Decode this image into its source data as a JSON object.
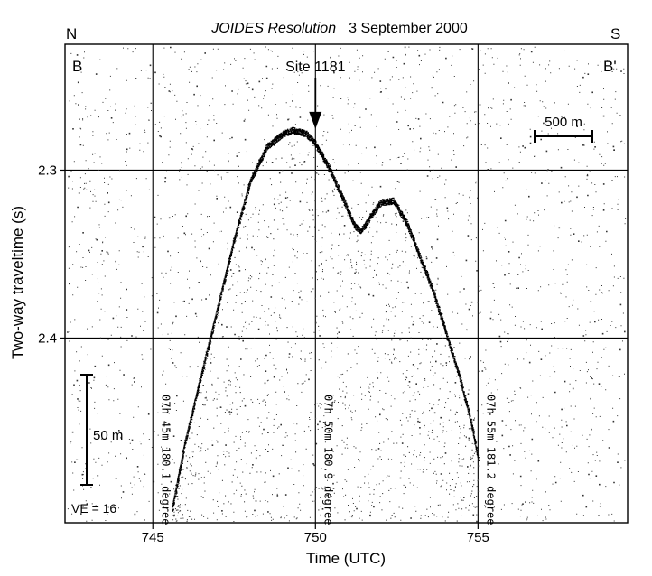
{
  "chart_data": {
    "type": "scatter",
    "title_italic": "JOIDES Resolution",
    "title_date": "3 September 2000",
    "xlabel": "Time (UTC)",
    "ylabel": "Two-way traveltime (s)",
    "xlim": [
      742.3,
      759.6
    ],
    "ylim": [
      2.51,
      2.225
    ],
    "xticks": [
      745,
      750,
      755
    ],
    "yticks": [
      2.3,
      2.4
    ],
    "xtick_labels": [
      "745",
      "750",
      "755"
    ],
    "ytick_labels": [
      "2.3",
      "2.4"
    ],
    "grid": true,
    "corner_labels": {
      "top_left": "N",
      "top_right": "S",
      "profile_start": "B",
      "profile_end": "B'"
    },
    "site_label": "Site 1181",
    "site_x": 750.0,
    "site_y": 2.276,
    "scale_horizontal": "500 m",
    "scale_vertical": "50 m",
    "vertical_exaggeration": "VE = 16",
    "time_marks": [
      {
        "x": 745.2,
        "label": "07h 45m 180.1 degree"
      },
      {
        "x": 750.2,
        "label": "07h 50m 180.9 degree"
      },
      {
        "x": 755.2,
        "label": "07h 55m 181.2 degree"
      }
    ],
    "seafloor_profile": {
      "x": [
        745.6,
        746.0,
        746.5,
        747.0,
        747.5,
        748.0,
        748.5,
        749.0,
        749.3,
        749.7,
        750.0,
        750.4,
        750.8,
        751.2,
        751.4,
        751.7,
        752.0,
        752.4,
        752.8,
        753.2,
        753.6,
        754.0,
        754.4,
        754.8,
        755.0
      ],
      "y": [
        2.5,
        2.46,
        2.42,
        2.38,
        2.34,
        2.305,
        2.285,
        2.277,
        2.275,
        2.277,
        2.283,
        2.297,
        2.314,
        2.332,
        2.335,
        2.326,
        2.318,
        2.317,
        2.33,
        2.35,
        2.37,
        2.395,
        2.42,
        2.45,
        2.47
      ]
    }
  }
}
